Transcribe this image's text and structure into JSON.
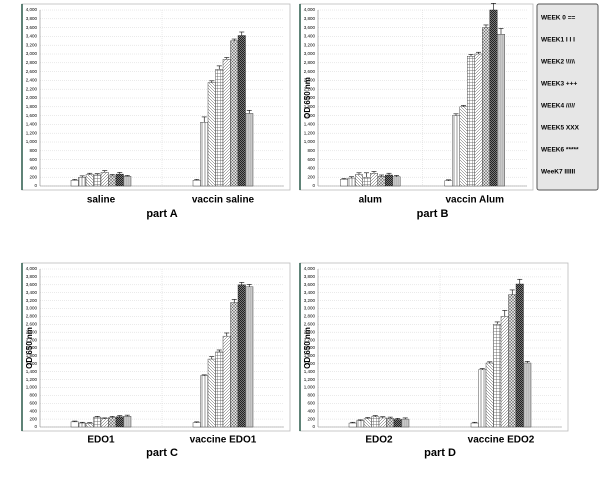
{
  "series_style": [
    {
      "color": "#ffffff",
      "pattern": "none"
    },
    {
      "color": "#ffffff",
      "pattern": "vertical"
    },
    {
      "color": "#ffffff",
      "pattern": "diag-back"
    },
    {
      "color": "#ffffff",
      "pattern": "cross"
    },
    {
      "color": "#ffffff",
      "pattern": "diag"
    },
    {
      "color": "#dddddd",
      "pattern": "xcross"
    },
    {
      "color": "#777777",
      "pattern": "dots"
    },
    {
      "color": "#c8c8c8",
      "pattern": "dense-vertical"
    }
  ],
  "chart_data": [
    {
      "type": "bar",
      "caption": "part A",
      "categories": [
        "saline",
        "vaccin saline"
      ],
      "ylim": [
        0,
        4000
      ],
      "yticks": [
        0,
        200,
        400,
        600,
        800,
        {
          "value": 1000,
          "label": "1,000"
        },
        {
          "value": 1200,
          "label": "1,200"
        },
        {
          "value": 1400,
          "label": "1,400"
        },
        {
          "value": 1600,
          "label": "1,600"
        },
        {
          "value": 1800,
          "label": "1,800"
        },
        {
          "value": 2000,
          "label": "2,000"
        },
        {
          "value": 2200,
          "label": "2,200"
        },
        {
          "value": 2400,
          "label": "2,400"
        },
        {
          "value": 2600,
          "label": "2,600"
        },
        {
          "value": 2800,
          "label": "2,800"
        },
        {
          "value": 3000,
          "label": "3,000"
        },
        {
          "value": 3200,
          "label": "3,200"
        },
        {
          "value": 3400,
          "label": "3,400"
        },
        {
          "value": 3600,
          "label": "3,600"
        },
        {
          "value": 3800,
          "label": "3,800"
        },
        {
          "value": 4000,
          "label": "4,000"
        }
      ],
      "series": [
        {
          "values": [
            130,
            130
          ],
          "errors": [
            20,
            20
          ]
        },
        {
          "values": [
            200,
            1450
          ],
          "errors": [
            30,
            120
          ]
        },
        {
          "values": [
            260,
            2350
          ],
          "errors": [
            30,
            40
          ]
        },
        {
          "values": [
            250,
            2650
          ],
          "errors": [
            30,
            80
          ]
        },
        {
          "values": [
            310,
            2880
          ],
          "errors": [
            40,
            40
          ]
        },
        {
          "values": [
            230,
            3300
          ],
          "errors": [
            30,
            40
          ]
        },
        {
          "values": [
            270,
            3420
          ],
          "errors": [
            40,
            80
          ]
        },
        {
          "values": [
            220,
            1650
          ],
          "errors": [
            20,
            70
          ]
        }
      ]
    },
    {
      "type": "bar",
      "caption": "part B",
      "ylabel": "OD 650  nm",
      "categories": [
        "alum",
        "vaccin Alum"
      ],
      "ylim": [
        0,
        4000
      ],
      "yticks": [
        0,
        200,
        400,
        600,
        800,
        {
          "value": 1000,
          "label": "1,000"
        },
        {
          "value": 1200,
          "label": "1,200"
        },
        {
          "value": 1400,
          "label": "1,400"
        },
        {
          "value": 1600,
          "label": "1,600"
        },
        {
          "value": 1800,
          "label": "1,800"
        },
        {
          "value": 2000,
          "label": "2,000"
        },
        {
          "value": 2200,
          "label": "2,200"
        },
        {
          "value": 2400,
          "label": "2,400"
        },
        {
          "value": 2600,
          "label": "2,600"
        },
        {
          "value": 2800,
          "label": "2,800"
        },
        {
          "value": 3000,
          "label": "3,000"
        },
        {
          "value": 3200,
          "label": "3,200"
        },
        {
          "value": 3400,
          "label": "3,400"
        },
        {
          "value": 3600,
          "label": "3,600"
        },
        {
          "value": 3800,
          "label": "3,800"
        },
        {
          "value": 4000,
          "label": "4,000"
        }
      ],
      "series": [
        {
          "name": "WEEK 0 ==",
          "values": [
            150,
            120
          ],
          "errors": [
            20,
            20
          ]
        },
        {
          "name": "WEEK1 I  I  I",
          "values": [
            180,
            1600
          ],
          "errors": [
            30,
            40
          ]
        },
        {
          "name": "WEEK2 \\\\\\\\\\",
          "values": [
            260,
            1800
          ],
          "errors": [
            40,
            30
          ]
        },
        {
          "name": "WEEK3  +++",
          "values": [
            200,
            2950
          ],
          "errors": [
            100,
            40
          ]
        },
        {
          "name": "WEEK4 /////",
          "values": [
            290,
            3000
          ],
          "errors": [
            40,
            40
          ]
        },
        {
          "name": "WEEK5 XXX",
          "values": [
            220,
            3600
          ],
          "errors": [
            30,
            60
          ]
        },
        {
          "name": "WEEK6 *****",
          "values": [
            250,
            4000
          ],
          "errors": [
            40,
            150
          ]
        },
        {
          "name": "WeeK7 IIIIII",
          "values": [
            210,
            3450
          ],
          "errors": [
            30,
            130
          ]
        }
      ]
    },
    {
      "type": "bar",
      "caption": "part C",
      "ylabel": "OD 650  nm",
      "categories": [
        "EDO1",
        "vaccine EDO1"
      ],
      "ylim": [
        0,
        4000
      ],
      "yticks": [
        0,
        200,
        400,
        600,
        800,
        {
          "value": 1000,
          "label": "1,000"
        },
        {
          "value": 1200,
          "label": "1,200"
        },
        {
          "value": 1400,
          "label": "1,400"
        },
        {
          "value": 1600,
          "label": "1,600"
        },
        {
          "value": 1800,
          "label": "1,800"
        },
        {
          "value": 2000,
          "label": "2,000"
        },
        {
          "value": 2200,
          "label": "2,200"
        },
        {
          "value": 2400,
          "label": "2,400"
        },
        {
          "value": 2600,
          "label": "2,600"
        },
        {
          "value": 2800,
          "label": "2,800"
        },
        {
          "value": 3000,
          "label": "3,000"
        },
        {
          "value": 3200,
          "label": "3,200"
        },
        {
          "value": 3400,
          "label": "3,400"
        },
        {
          "value": 3600,
          "label": "3,600"
        },
        {
          "value": 3800,
          "label": "3,800"
        },
        {
          "value": 4000,
          "label": "4,000"
        }
      ],
      "series": [
        {
          "values": [
            130,
            110
          ],
          "errors": [
            20,
            20
          ]
        },
        {
          "values": [
            100,
            1300
          ],
          "errors": [
            20,
            20
          ]
        },
        {
          "values": [
            90,
            1720
          ],
          "errors": [
            20,
            60
          ]
        },
        {
          "values": [
            250,
            1900
          ],
          "errors": [
            20,
            50
          ]
        },
        {
          "values": [
            210,
            2300
          ],
          "errors": [
            20,
            80
          ]
        },
        {
          "values": [
            240,
            3150
          ],
          "errors": [
            30,
            80
          ]
        },
        {
          "values": [
            260,
            3600
          ],
          "errors": [
            30,
            60
          ]
        },
        {
          "values": [
            270,
            3550
          ],
          "errors": [
            30,
            60
          ]
        }
      ]
    },
    {
      "type": "bar",
      "caption": "part D",
      "ylabel": "OD 650  nm",
      "categories": [
        "EDO2",
        "vaccine EDO2"
      ],
      "ylim": [
        0,
        4000
      ],
      "yticks": [
        0,
        200,
        400,
        600,
        800,
        {
          "value": 1000,
          "label": "1,000"
        },
        {
          "value": 1200,
          "label": "1,200"
        },
        {
          "value": 1400,
          "label": "1,400"
        },
        {
          "value": 1600,
          "label": "1,600"
        },
        {
          "value": 1800,
          "label": "1,800"
        },
        {
          "value": 2000,
          "label": "2,000"
        },
        {
          "value": 2200,
          "label": "2,200"
        },
        {
          "value": 2400,
          "label": "2,400"
        },
        {
          "value": 2600,
          "label": "2,600"
        },
        {
          "value": 2800,
          "label": "2,800"
        },
        {
          "value": 3000,
          "label": "3,000"
        },
        {
          "value": 3200,
          "label": "3,200"
        },
        {
          "value": 3400,
          "label": "3,400"
        },
        {
          "value": 3600,
          "label": "3,600"
        },
        {
          "value": 3800,
          "label": "3,800"
        },
        {
          "value": 4000,
          "label": "4,000"
        }
      ],
      "series": [
        {
          "values": [
            100,
            100
          ],
          "errors": [
            20,
            20
          ]
        },
        {
          "values": [
            160,
            1450
          ],
          "errors": [
            20,
            30
          ]
        },
        {
          "values": [
            210,
            1620
          ],
          "errors": [
            30,
            30
          ]
        },
        {
          "values": [
            260,
            2600
          ],
          "errors": [
            30,
            60
          ]
        },
        {
          "values": [
            230,
            2800
          ],
          "errors": [
            30,
            150
          ]
        },
        {
          "values": [
            220,
            3350
          ],
          "errors": [
            30,
            120
          ]
        },
        {
          "values": [
            190,
            3620
          ],
          "errors": [
            30,
            120
          ]
        },
        {
          "values": [
            200,
            1620
          ],
          "errors": [
            30,
            40
          ]
        }
      ]
    }
  ]
}
